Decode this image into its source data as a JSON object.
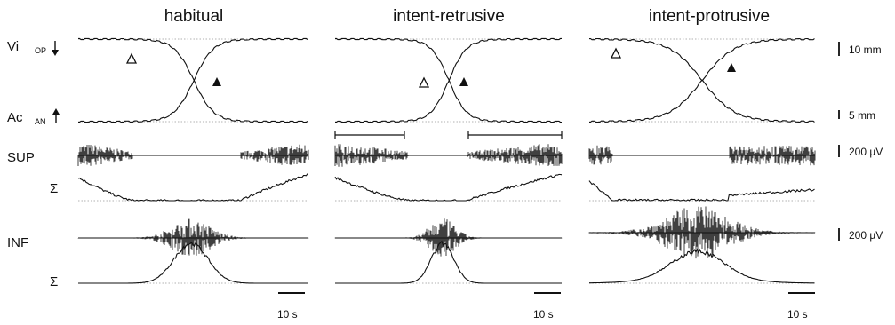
{
  "panels": [
    {
      "title": "habitual"
    },
    {
      "title": "intent-retrusive"
    },
    {
      "title": "intent-protrusive"
    }
  ],
  "rows": {
    "vi": "Vi",
    "vi_sub": "OP",
    "ac": "Ac",
    "ac_sub": "AN",
    "sup": "SUP",
    "inf": "INF",
    "sigma": "Σ"
  },
  "scales": {
    "mm10": "10 mm",
    "mm5": "5 mm",
    "uv_sup": "200 µV",
    "uv_inf": "200 µV",
    "time": "10 s"
  }
}
